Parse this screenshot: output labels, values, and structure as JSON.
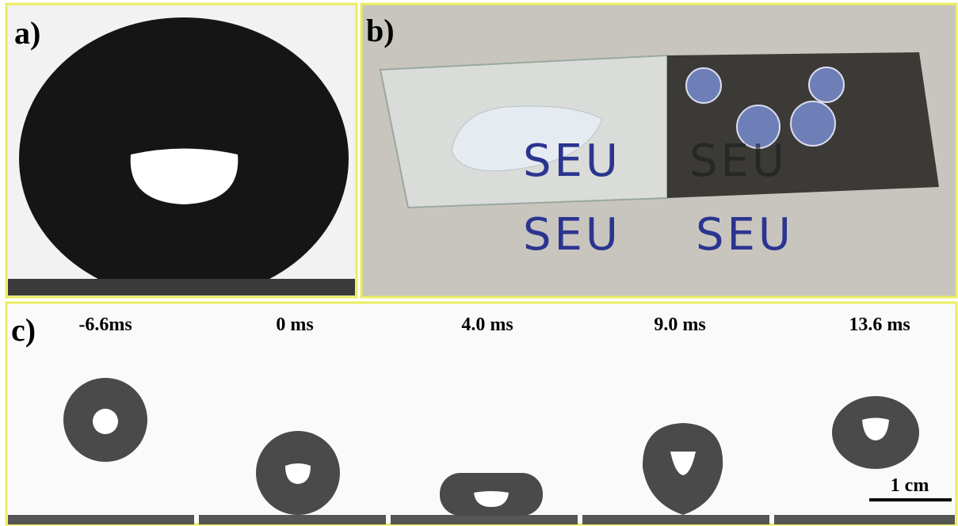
{
  "panels": {
    "a": {
      "label": "a)"
    },
    "b": {
      "label": "b)",
      "slide_texts": [
        "SEU",
        "SEU"
      ],
      "paper_texts": [
        "SEU",
        "SEU"
      ]
    },
    "c": {
      "label": "c)",
      "times": [
        "-6.6ms",
        "0 ms",
        "4.0 ms",
        "9.0 ms",
        "13.6 ms"
      ],
      "scale_bar": "1 cm"
    }
  }
}
